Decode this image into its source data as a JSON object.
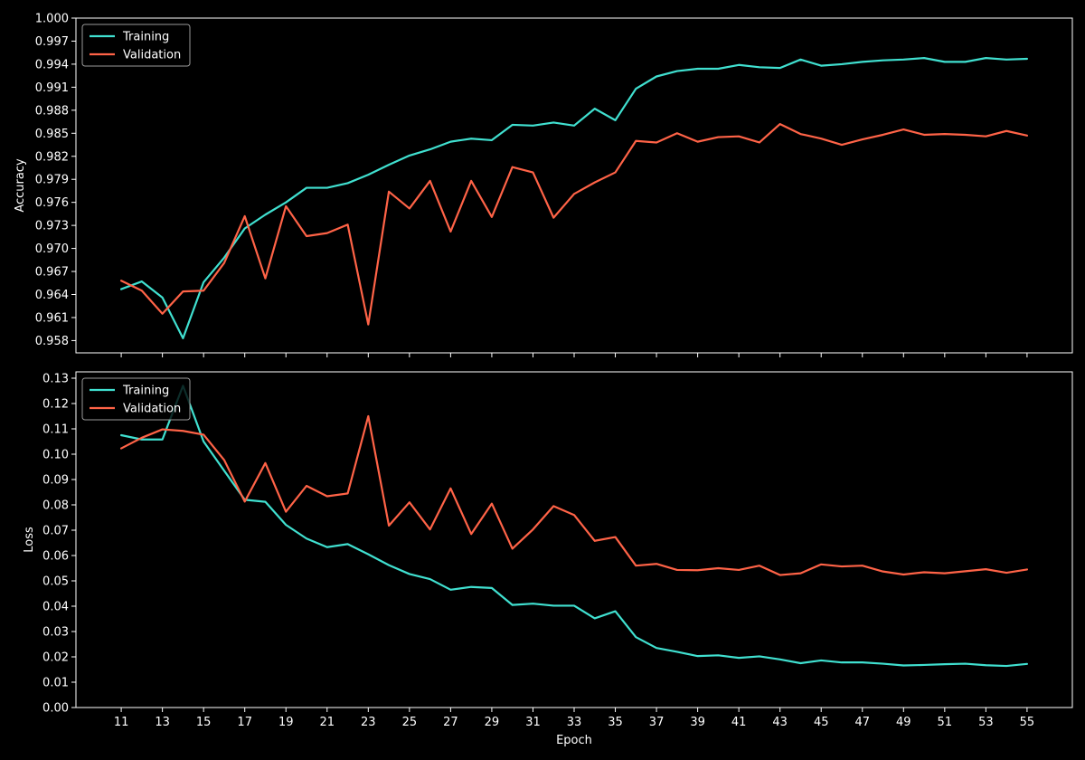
{
  "chart_data": [
    {
      "type": "line",
      "ylabel": "Accuracy",
      "xlabel": "",
      "xlim": [
        8.8,
        57.2
      ],
      "ylim": [
        0.9564,
        1.0
      ],
      "x": [
        11,
        12,
        13,
        14,
        15,
        16,
        17,
        18,
        19,
        20,
        21,
        22,
        23,
        24,
        25,
        26,
        27,
        28,
        29,
        30,
        31,
        32,
        33,
        34,
        35,
        36,
        37,
        38,
        39,
        40,
        41,
        42,
        43,
        44,
        45,
        46,
        47,
        48,
        49,
        50,
        51,
        52,
        53,
        54,
        55
      ],
      "x_ticks": [
        11,
        13,
        15,
        17,
        19,
        21,
        23,
        25,
        27,
        29,
        31,
        33,
        35,
        37,
        39,
        41,
        43,
        45,
        47,
        49,
        51,
        53,
        55
      ],
      "x_tick_labels": [],
      "y_ticks": [
        0.958,
        0.961,
        0.964,
        0.967,
        0.97,
        0.973,
        0.976,
        0.979,
        0.982,
        0.985,
        0.988,
        0.991,
        0.994,
        0.997,
        1.0
      ],
      "y_tick_labels": [
        "0.958",
        "0.961",
        "0.964",
        "0.967",
        "0.970",
        "0.973",
        "0.976",
        "0.979",
        "0.982",
        "0.985",
        "0.988",
        "0.991",
        "0.994",
        "0.997",
        "1.000"
      ],
      "legend": "upper-left",
      "grid": false,
      "series": [
        {
          "name": "Training",
          "color": "#40e0d0",
          "values": [
            0.9647,
            0.9657,
            0.9636,
            0.9583,
            0.9656,
            0.9688,
            0.9726,
            0.9744,
            0.976,
            0.9779,
            0.9779,
            0.9785,
            0.9796,
            0.9809,
            0.9821,
            0.9829,
            0.9839,
            0.9843,
            0.9841,
            0.9861,
            0.986,
            0.9864,
            0.986,
            0.9882,
            0.9867,
            0.9908,
            0.9924,
            0.9931,
            0.9934,
            0.9934,
            0.9939,
            0.9936,
            0.9935,
            0.9946,
            0.9938,
            0.994,
            0.9943,
            0.9945,
            0.9946,
            0.9948,
            0.9943,
            0.9943,
            0.9948,
            0.9946,
            0.9947
          ]
        },
        {
          "name": "Validation",
          "color": "#ff6347",
          "values": [
            0.9658,
            0.9645,
            0.9615,
            0.9644,
            0.9645,
            0.9681,
            0.9742,
            0.9661,
            0.9755,
            0.9716,
            0.972,
            0.9731,
            0.9601,
            0.9774,
            0.9752,
            0.9788,
            0.9722,
            0.9788,
            0.9741,
            0.9806,
            0.9799,
            0.974,
            0.9771,
            0.9786,
            0.9799,
            0.984,
            0.9838,
            0.985,
            0.9839,
            0.9845,
            0.9846,
            0.9838,
            0.9862,
            0.9849,
            0.9843,
            0.9835,
            0.9842,
            0.9848,
            0.9855,
            0.9848,
            0.9849,
            0.9848,
            0.9846,
            0.9853,
            0.9847
          ]
        }
      ]
    },
    {
      "type": "line",
      "ylabel": "Loss",
      "xlabel": "Epoch",
      "xlim": [
        8.8,
        57.2
      ],
      "ylim": [
        0.0,
        0.1325
      ],
      "x": [
        11,
        12,
        13,
        14,
        15,
        16,
        17,
        18,
        19,
        20,
        21,
        22,
        23,
        24,
        25,
        26,
        27,
        28,
        29,
        30,
        31,
        32,
        33,
        34,
        35,
        36,
        37,
        38,
        39,
        40,
        41,
        42,
        43,
        44,
        45,
        46,
        47,
        48,
        49,
        50,
        51,
        52,
        53,
        54,
        55
      ],
      "x_ticks": [
        11,
        13,
        15,
        17,
        19,
        21,
        23,
        25,
        27,
        29,
        31,
        33,
        35,
        37,
        39,
        41,
        43,
        45,
        47,
        49,
        51,
        53,
        55
      ],
      "x_tick_labels": [
        "11",
        "13",
        "15",
        "17",
        "19",
        "21",
        "23",
        "25",
        "27",
        "29",
        "31",
        "33",
        "35",
        "37",
        "39",
        "41",
        "43",
        "45",
        "47",
        "49",
        "51",
        "53",
        "55"
      ],
      "y_ticks": [
        0.0,
        0.01,
        0.02,
        0.03,
        0.04,
        0.05,
        0.06,
        0.07,
        0.08,
        0.09,
        0.1,
        0.11,
        0.12,
        0.13
      ],
      "y_tick_labels": [
        "0.00",
        "0.01",
        "0.02",
        "0.03",
        "0.04",
        "0.05",
        "0.06",
        "0.07",
        "0.08",
        "0.09",
        "0.10",
        "0.11",
        "0.12",
        "0.13"
      ],
      "legend": "upper-left",
      "grid": false,
      "series": [
        {
          "name": "Training",
          "color": "#40e0d0",
          "values": [
            0.1075,
            0.1058,
            0.1058,
            0.127,
            0.105,
            0.0935,
            0.082,
            0.0812,
            0.0721,
            0.0667,
            0.0633,
            0.0645,
            0.0605,
            0.0562,
            0.0527,
            0.0507,
            0.0465,
            0.0476,
            0.0472,
            0.0405,
            0.041,
            0.0402,
            0.0402,
            0.0352,
            0.038,
            0.0278,
            0.0235,
            0.022,
            0.0203,
            0.0206,
            0.0196,
            0.0202,
            0.019,
            0.0175,
            0.0186,
            0.0178,
            0.0178,
            0.0173,
            0.0166,
            0.0168,
            0.0171,
            0.0173,
            0.0167,
            0.0164,
            0.0172
          ]
        },
        {
          "name": "Validation",
          "color": "#ff6347",
          "values": [
            0.1023,
            0.1065,
            0.1098,
            0.1092,
            0.1077,
            0.0977,
            0.0813,
            0.0965,
            0.0773,
            0.0875,
            0.0834,
            0.0845,
            0.115,
            0.0718,
            0.081,
            0.0703,
            0.0865,
            0.0685,
            0.0805,
            0.0627,
            0.0703,
            0.0795,
            0.076,
            0.0658,
            0.0673,
            0.056,
            0.0567,
            0.0543,
            0.0542,
            0.055,
            0.0543,
            0.056,
            0.0523,
            0.053,
            0.0565,
            0.0557,
            0.056,
            0.0537,
            0.0525,
            0.0534,
            0.053,
            0.0538,
            0.0546,
            0.0532,
            0.0545
          ]
        }
      ]
    }
  ]
}
